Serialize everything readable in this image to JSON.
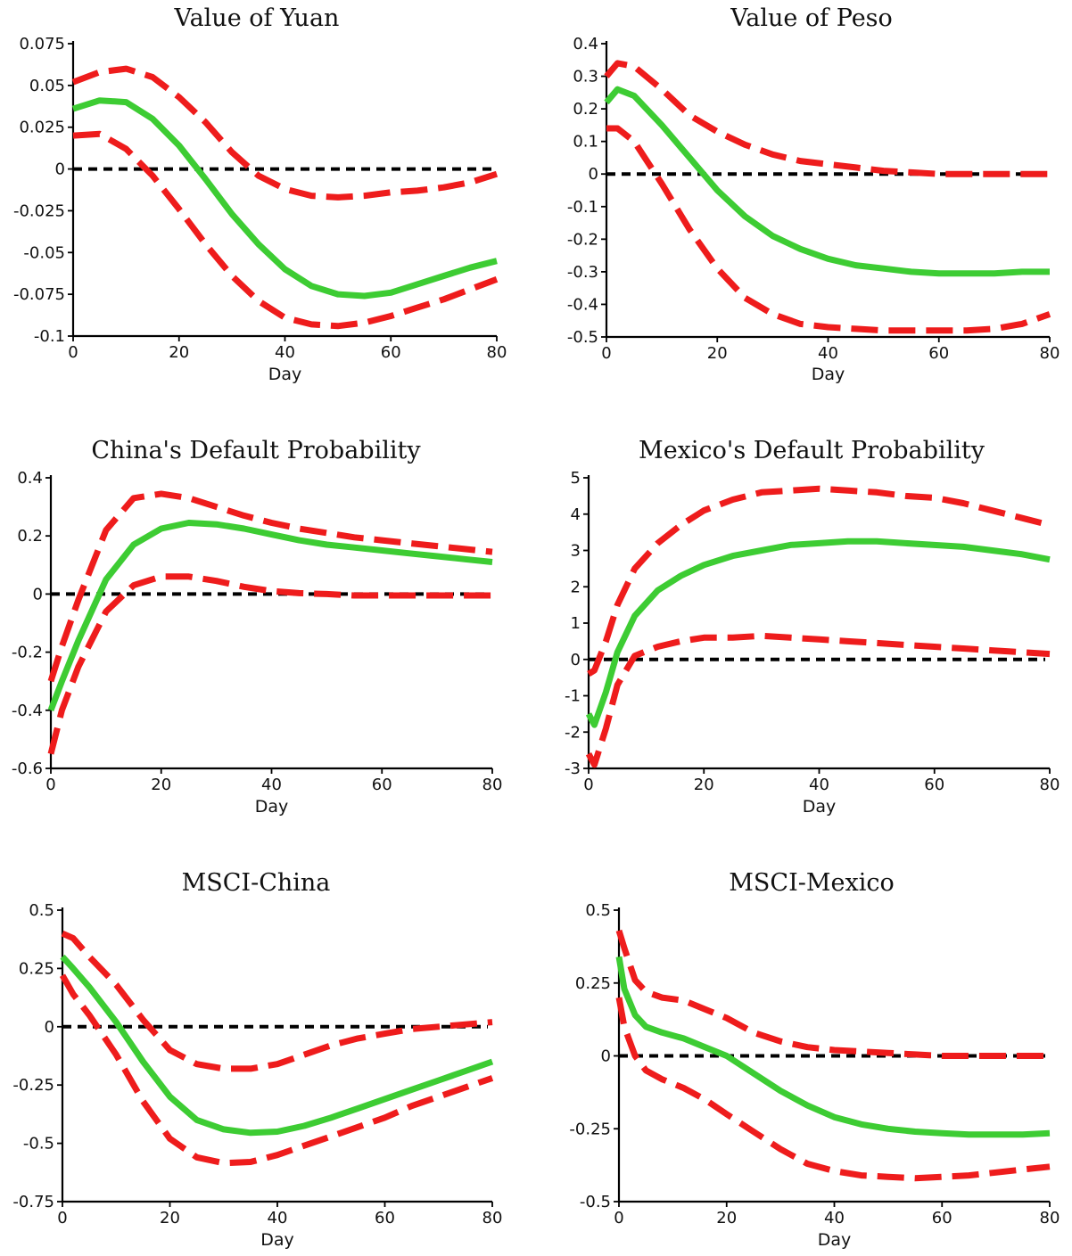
{
  "colors": {
    "estimate": "#3dcc33",
    "band": "#ee1c1c",
    "zero_line": "#000000"
  },
  "chart_data": [
    {
      "type": "line",
      "title": "Value of  Yuan",
      "xlabel": "Day",
      "ylabel": "",
      "xlim": [
        0,
        80
      ],
      "ylim": [
        -0.1,
        0.075
      ],
      "xticks": [
        0,
        20,
        40,
        60,
        80
      ],
      "xtick_labels": [
        "0",
        "20",
        "40",
        "60",
        "80"
      ],
      "yticks": [
        -0.1,
        -0.075,
        -0.05,
        -0.025,
        0,
        0.025,
        0.05,
        0.075
      ],
      "ytick_labels": [
        "-0.1",
        "-0.075",
        "-0.05",
        "-0.025",
        "0",
        "0.025",
        "0.05",
        "0.075"
      ],
      "zero_line": 0,
      "x": [
        0,
        5,
        10,
        15,
        20,
        25,
        30,
        35,
        40,
        45,
        50,
        55,
        60,
        65,
        70,
        75,
        80
      ],
      "series": [
        {
          "role": "upper",
          "style": "dashed",
          "values": [
            0.052,
            0.058,
            0.06,
            0.055,
            0.043,
            0.028,
            0.01,
            -0.004,
            -0.012,
            -0.016,
            -0.017,
            -0.016,
            -0.014,
            -0.013,
            -0.011,
            -0.008,
            -0.003
          ]
        },
        {
          "role": "estimate",
          "style": "solid",
          "values": [
            0.036,
            0.041,
            0.04,
            0.03,
            0.014,
            -0.006,
            -0.027,
            -0.045,
            -0.06,
            -0.07,
            -0.075,
            -0.076,
            -0.074,
            -0.069,
            -0.064,
            -0.059,
            -0.055
          ]
        },
        {
          "role": "lower",
          "style": "dashed",
          "values": [
            0.02,
            0.021,
            0.012,
            -0.004,
            -0.024,
            -0.045,
            -0.064,
            -0.079,
            -0.089,
            -0.093,
            -0.094,
            -0.092,
            -0.088,
            -0.083,
            -0.078,
            -0.072,
            -0.066
          ]
        }
      ]
    },
    {
      "type": "line",
      "title": "Value of  Peso",
      "xlabel": "Day",
      "ylabel": "",
      "xlim": [
        0,
        80
      ],
      "ylim": [
        -0.5,
        0.4
      ],
      "xticks": [
        0,
        20,
        40,
        60,
        80
      ],
      "xtick_labels": [
        "0",
        "20",
        "40",
        "60",
        "80"
      ],
      "yticks": [
        -0.5,
        -0.4,
        -0.3,
        -0.2,
        -0.1,
        0,
        0.1,
        0.2,
        0.3,
        0.4
      ],
      "ytick_labels": [
        "-0.5",
        "-0.4",
        "-0.3",
        "-0.2",
        "-0.1",
        "0",
        "0.1",
        "0.2",
        "0.3",
        "0.4"
      ],
      "zero_line": 0,
      "x": [
        0,
        2,
        5,
        10,
        15,
        20,
        25,
        30,
        35,
        40,
        45,
        50,
        55,
        60,
        65,
        70,
        75,
        80
      ],
      "series": [
        {
          "role": "upper",
          "style": "dashed",
          "values": [
            0.3,
            0.34,
            0.33,
            0.26,
            0.18,
            0.13,
            0.09,
            0.06,
            0.04,
            0.03,
            0.02,
            0.01,
            0.005,
            0.0,
            0.0,
            0.0,
            0.0,
            0.0
          ]
        },
        {
          "role": "estimate",
          "style": "solid",
          "values": [
            0.22,
            0.26,
            0.24,
            0.15,
            0.05,
            -0.05,
            -0.13,
            -0.19,
            -0.23,
            -0.26,
            -0.28,
            -0.29,
            -0.3,
            -0.305,
            -0.305,
            -0.305,
            -0.3,
            -0.3
          ]
        },
        {
          "role": "lower",
          "style": "dashed",
          "values": [
            0.14,
            0.14,
            0.1,
            -0.03,
            -0.17,
            -0.29,
            -0.38,
            -0.43,
            -0.46,
            -0.47,
            -0.475,
            -0.48,
            -0.48,
            -0.48,
            -0.48,
            -0.475,
            -0.46,
            -0.43
          ]
        }
      ]
    },
    {
      "type": "line",
      "title": "China's Default Probability",
      "xlabel": "Day",
      "ylabel": "",
      "xlim": [
        0,
        80
      ],
      "ylim": [
        -0.6,
        0.4
      ],
      "xticks": [
        0,
        20,
        40,
        60,
        80
      ],
      "xtick_labels": [
        "0",
        "20",
        "40",
        "60",
        "80"
      ],
      "yticks": [
        -0.6,
        -0.4,
        -0.2,
        0,
        0.2,
        0.4
      ],
      "ytick_labels": [
        "-0.6",
        "-0.4",
        "-0.2",
        "0",
        "0.2",
        "0.4"
      ],
      "zero_line": 0,
      "x": [
        0,
        2,
        5,
        10,
        15,
        20,
        25,
        30,
        35,
        40,
        45,
        50,
        55,
        60,
        65,
        70,
        75,
        80
      ],
      "series": [
        {
          "role": "upper",
          "style": "dashed",
          "values": [
            -0.3,
            -0.18,
            -0.02,
            0.22,
            0.33,
            0.345,
            0.33,
            0.3,
            0.27,
            0.245,
            0.225,
            0.21,
            0.195,
            0.185,
            0.175,
            0.165,
            0.155,
            0.145
          ]
        },
        {
          "role": "estimate",
          "style": "solid",
          "values": [
            -0.4,
            -0.3,
            -0.16,
            0.05,
            0.17,
            0.225,
            0.245,
            0.24,
            0.225,
            0.205,
            0.185,
            0.17,
            0.16,
            0.15,
            0.14,
            0.13,
            0.12,
            0.11
          ]
        },
        {
          "role": "lower",
          "style": "dashed",
          "values": [
            -0.55,
            -0.4,
            -0.25,
            -0.06,
            0.03,
            0.06,
            0.06,
            0.045,
            0.025,
            0.01,
            0.003,
            0.0,
            -0.005,
            -0.005,
            -0.005,
            -0.005,
            -0.005,
            -0.005
          ]
        }
      ]
    },
    {
      "type": "line",
      "title": "Mexico's Default Probability",
      "xlabel": "Day",
      "ylabel": "",
      "xlim": [
        0,
        80
      ],
      "ylim": [
        -3,
        5
      ],
      "xticks": [
        0,
        20,
        40,
        60,
        80
      ],
      "xtick_labels": [
        "0",
        "20",
        "40",
        "60",
        "80"
      ],
      "yticks": [
        -3,
        -2,
        -1,
        0,
        1,
        2,
        3,
        4,
        5
      ],
      "ytick_labels": [
        "-3",
        "-2",
        "-1",
        "0",
        "1",
        "2",
        "3",
        "4",
        "5"
      ],
      "zero_line": 0,
      "x": [
        0,
        1,
        3,
        5,
        8,
        12,
        16,
        20,
        25,
        30,
        35,
        40,
        45,
        50,
        55,
        60,
        65,
        70,
        75,
        80
      ],
      "series": [
        {
          "role": "upper",
          "style": "dashed",
          "values": [
            -0.4,
            -0.3,
            0.5,
            1.5,
            2.5,
            3.2,
            3.7,
            4.1,
            4.4,
            4.6,
            4.65,
            4.7,
            4.65,
            4.6,
            4.5,
            4.45,
            4.3,
            4.1,
            3.9,
            3.7
          ]
        },
        {
          "role": "estimate",
          "style": "solid",
          "values": [
            -1.5,
            -1.8,
            -0.9,
            0.2,
            1.2,
            1.9,
            2.3,
            2.6,
            2.85,
            3.0,
            3.15,
            3.2,
            3.25,
            3.25,
            3.2,
            3.15,
            3.1,
            3.0,
            2.9,
            2.75
          ]
        },
        {
          "role": "lower",
          "style": "dashed",
          "values": [
            -2.6,
            -2.9,
            -1.9,
            -0.7,
            0.1,
            0.35,
            0.5,
            0.6,
            0.6,
            0.65,
            0.6,
            0.55,
            0.5,
            0.45,
            0.4,
            0.35,
            0.3,
            0.25,
            0.2,
            0.15
          ]
        }
      ]
    },
    {
      "type": "line",
      "title": "MSCI-China",
      "xlabel": "Day",
      "ylabel": "",
      "xlim": [
        0,
        80
      ],
      "ylim": [
        -0.75,
        0.5
      ],
      "xticks": [
        0,
        20,
        40,
        60,
        80
      ],
      "xtick_labels": [
        "0",
        "20",
        "40",
        "60",
        "80"
      ],
      "yticks": [
        -0.75,
        -0.5,
        -0.25,
        0,
        0.25,
        0.5
      ],
      "ytick_labels": [
        "-0.75",
        "-0.5",
        "-0.25",
        "0",
        "0.25",
        "0.5"
      ],
      "zero_line": 0,
      "x": [
        0,
        2,
        5,
        10,
        15,
        20,
        25,
        30,
        35,
        40,
        45,
        50,
        55,
        60,
        65,
        70,
        75,
        80
      ],
      "series": [
        {
          "role": "upper",
          "style": "dashed",
          "values": [
            0.4,
            0.38,
            0.3,
            0.18,
            0.03,
            -0.1,
            -0.16,
            -0.18,
            -0.18,
            -0.16,
            -0.12,
            -0.08,
            -0.05,
            -0.03,
            -0.01,
            0.0,
            0.01,
            0.02
          ]
        },
        {
          "role": "estimate",
          "style": "solid",
          "values": [
            0.3,
            0.25,
            0.17,
            0.02,
            -0.15,
            -0.3,
            -0.4,
            -0.44,
            -0.455,
            -0.45,
            -0.425,
            -0.39,
            -0.35,
            -0.31,
            -0.27,
            -0.23,
            -0.19,
            -0.15
          ]
        },
        {
          "role": "lower",
          "style": "dashed",
          "values": [
            0.22,
            0.14,
            0.05,
            -0.12,
            -0.32,
            -0.48,
            -0.56,
            -0.585,
            -0.58,
            -0.55,
            -0.51,
            -0.47,
            -0.43,
            -0.39,
            -0.34,
            -0.3,
            -0.26,
            -0.22
          ]
        }
      ]
    },
    {
      "type": "line",
      "title": "MSCI-Mexico",
      "xlabel": "Day",
      "ylabel": "",
      "xlim": [
        0,
        80
      ],
      "ylim": [
        -0.5,
        0.5
      ],
      "xticks": [
        0,
        20,
        40,
        60,
        80
      ],
      "xtick_labels": [
        "0",
        "20",
        "40",
        "60",
        "80"
      ],
      "yticks": [
        -0.5,
        -0.25,
        0,
        0.25,
        0.5
      ],
      "ytick_labels": [
        "-0.5",
        "-0.25",
        "0",
        "0.25",
        "0.5"
      ],
      "zero_line": 0,
      "x": [
        0,
        1,
        3,
        5,
        8,
        12,
        16,
        20,
        25,
        30,
        35,
        40,
        45,
        50,
        55,
        60,
        65,
        70,
        75,
        80
      ],
      "series": [
        {
          "role": "upper",
          "style": "dashed",
          "values": [
            0.43,
            0.37,
            0.26,
            0.22,
            0.2,
            0.19,
            0.16,
            0.13,
            0.08,
            0.05,
            0.03,
            0.02,
            0.015,
            0.01,
            0.005,
            0.0,
            0.0,
            0.0,
            0.0,
            0.0
          ]
        },
        {
          "role": "estimate",
          "style": "solid",
          "values": [
            0.34,
            0.23,
            0.14,
            0.1,
            0.08,
            0.06,
            0.03,
            0.0,
            -0.06,
            -0.12,
            -0.17,
            -0.21,
            -0.235,
            -0.25,
            -0.26,
            -0.265,
            -0.27,
            -0.27,
            -0.27,
            -0.265
          ]
        },
        {
          "role": "lower",
          "style": "dashed",
          "values": [
            0.2,
            0.1,
            0.0,
            -0.05,
            -0.08,
            -0.11,
            -0.15,
            -0.2,
            -0.26,
            -0.32,
            -0.37,
            -0.395,
            -0.41,
            -0.415,
            -0.42,
            -0.415,
            -0.41,
            -0.4,
            -0.39,
            -0.38
          ]
        }
      ]
    }
  ]
}
